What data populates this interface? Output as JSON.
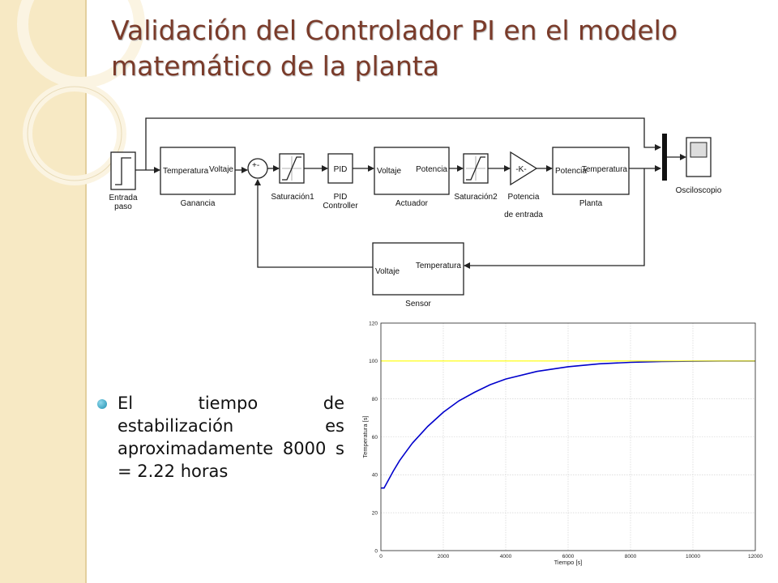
{
  "slide": {
    "title": "Validación del Controlador PI en el modelo matemático de la planta",
    "bullet": "El tiempo de estabilización es aproximadamente 8000 s = 2.22 horas",
    "accent_color": "#7a3b2a",
    "stripe_color": "#f7e9c4"
  },
  "diagram": {
    "blocks": {
      "step": {
        "name": [
          "Entrada",
          "paso"
        ]
      },
      "ganancia": {
        "port_in": "Temperatura",
        "port_out": "Voltaje",
        "name": [
          "Ganancia"
        ]
      },
      "sum": {
        "signs": "+-"
      },
      "sat1": {
        "name": [
          "Saturación1"
        ]
      },
      "pid": {
        "text": "PID",
        "name": [
          "PID",
          "Controller"
        ]
      },
      "actuador": {
        "port_in": "Voltaje",
        "port_out": "Potencia",
        "name": [
          "Actuador"
        ]
      },
      "sat2": {
        "name": [
          "Saturación2"
        ]
      },
      "gain": {
        "text": "-K-",
        "name": [
          "Potencia",
          "de entrada"
        ]
      },
      "planta": {
        "port_in": "Potencia",
        "port_out": "Temperatura",
        "name": [
          "Planta"
        ]
      },
      "scope": {
        "name": [
          "Osciloscopio"
        ]
      },
      "sensor": {
        "port_in": "Temperatura",
        "port_out": "Voltaje",
        "name": [
          "Sensor"
        ]
      }
    }
  },
  "chart_data": {
    "type": "line",
    "title": "",
    "xlabel": "Tiempo [s]",
    "ylabel": "Temperatura [s]",
    "xlim": [
      0,
      12000
    ],
    "ylim": [
      0,
      120
    ],
    "xticks": [
      0,
      2000,
      4000,
      6000,
      8000,
      10000,
      12000
    ],
    "yticks": [
      0,
      20,
      40,
      60,
      80,
      100,
      120
    ],
    "grid": true,
    "series": [
      {
        "color": "#0000cc",
        "x": [
          0,
          100,
          200,
          400,
          600,
          800,
          1000,
          1500,
          2000,
          2500,
          3000,
          3500,
          4000,
          5000,
          6000,
          7000,
          8000,
          9000,
          10000,
          11000,
          12000
        ],
        "y": [
          33,
          33,
          36,
          42,
          47.5,
          52,
          56.5,
          65.5,
          73,
          79,
          83.5,
          87.5,
          90.5,
          94.5,
          97,
          98.5,
          99.3,
          99.7,
          99.9,
          100,
          100
        ]
      },
      {
        "color": "#ffff00",
        "x": [
          0,
          12000
        ],
        "y": [
          100,
          100
        ]
      }
    ]
  }
}
